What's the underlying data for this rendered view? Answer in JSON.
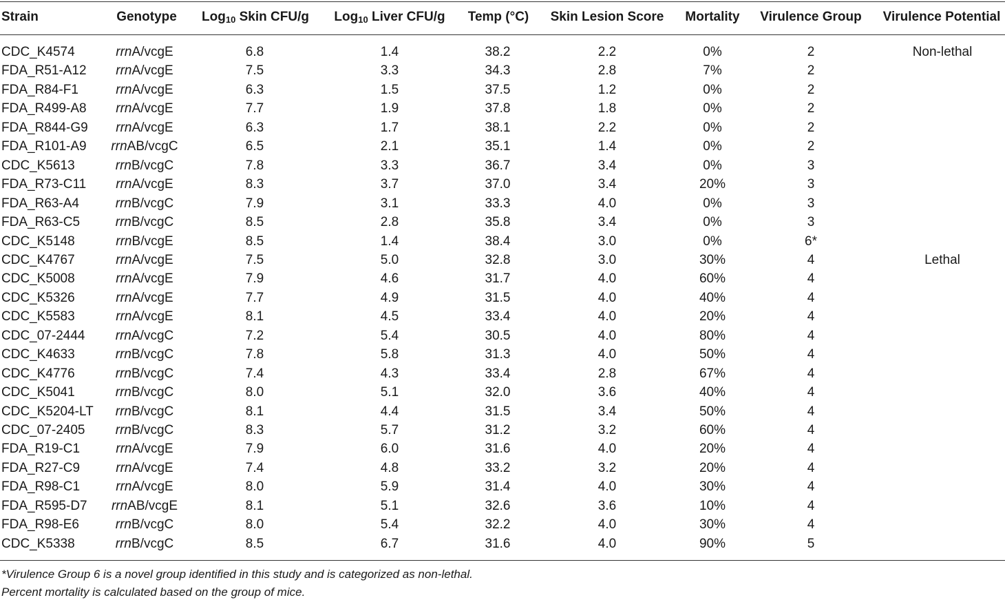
{
  "headers": {
    "strain": "Strain",
    "genotype": "Genotype",
    "skin_prefix": "Log",
    "skin_sub": "10",
    "skin_suffix": " Skin CFU/g",
    "liver_prefix": "Log",
    "liver_sub": "10",
    "liver_suffix": " Liver CFU/g",
    "temp": "Temp (°C)",
    "lesion": "Skin Lesion Score",
    "mortality": "Mortality",
    "vgroup": "Virulence Group",
    "vpotential": "Virulence Potential"
  },
  "rows": [
    {
      "strain": "CDC_K4574",
      "geno_italic": "rrn",
      "geno_rest": "A/vcgE",
      "skin": "6.8",
      "liver": "1.4",
      "temp": "38.2",
      "lesion": "2.2",
      "mortality": "0%",
      "group": "2",
      "potential": "Non-lethal"
    },
    {
      "strain": "FDA_R51-A12",
      "geno_italic": "rrn",
      "geno_rest": "A/vcgE",
      "skin": "7.5",
      "liver": "3.3",
      "temp": "34.3",
      "lesion": "2.8",
      "mortality": "7%",
      "group": "2",
      "potential": ""
    },
    {
      "strain": "FDA_R84-F1",
      "geno_italic": "rrn",
      "geno_rest": "A/vcgE",
      "skin": "6.3",
      "liver": "1.5",
      "temp": "37.5",
      "lesion": "1.2",
      "mortality": "0%",
      "group": "2",
      "potential": ""
    },
    {
      "strain": "FDA_R499-A8",
      "geno_italic": "rrn",
      "geno_rest": "A/vcgE",
      "skin": "7.7",
      "liver": "1.9",
      "temp": "37.8",
      "lesion": "1.8",
      "mortality": "0%",
      "group": "2",
      "potential": ""
    },
    {
      "strain": "FDA_R844-G9",
      "geno_italic": "rrn",
      "geno_rest": "A/vcgE",
      "skin": "6.3",
      "liver": "1.7",
      "temp": "38.1",
      "lesion": "2.2",
      "mortality": "0%",
      "group": "2",
      "potential": ""
    },
    {
      "strain": "FDA_R101-A9",
      "geno_italic": "rrn",
      "geno_rest": "AB/vcgC",
      "skin": "6.5",
      "liver": "2.1",
      "temp": "35.1",
      "lesion": "1.4",
      "mortality": "0%",
      "group": "2",
      "potential": ""
    },
    {
      "strain": "CDC_K5613",
      "geno_italic": "rrn",
      "geno_rest": "B/vcgC",
      "skin": "7.8",
      "liver": "3.3",
      "temp": "36.7",
      "lesion": "3.4",
      "mortality": "0%",
      "group": "3",
      "potential": ""
    },
    {
      "strain": "FDA_R73-C11",
      "geno_italic": "rrn",
      "geno_rest": "A/vcgE",
      "skin": "8.3",
      "liver": "3.7",
      "temp": "37.0",
      "lesion": "3.4",
      "mortality": "20%",
      "group": "3",
      "potential": ""
    },
    {
      "strain": "FDA_R63-A4",
      "geno_italic": "rrn",
      "geno_rest": "B/vcgC",
      "skin": "7.9",
      "liver": "3.1",
      "temp": "33.3",
      "lesion": "4.0",
      "mortality": "0%",
      "group": "3",
      "potential": ""
    },
    {
      "strain": "FDA_R63-C5",
      "geno_italic": "rrn",
      "geno_rest": "B/vcgC",
      "skin": "8.5",
      "liver": "2.8",
      "temp": "35.8",
      "lesion": "3.4",
      "mortality": "0%",
      "group": "3",
      "potential": ""
    },
    {
      "strain": "CDC_K5148",
      "geno_italic": "rrn",
      "geno_rest": "B/vcgE",
      "skin": "8.5",
      "liver": "1.4",
      "temp": "38.4",
      "lesion": "3.0",
      "mortality": "0%",
      "group": "6*",
      "potential": ""
    },
    {
      "strain": "CDC_K4767",
      "geno_italic": "rrn",
      "geno_rest": "A/vcgE",
      "skin": "7.5",
      "liver": "5.0",
      "temp": "32.8",
      "lesion": "3.0",
      "mortality": "30%",
      "group": "4",
      "potential": "Lethal"
    },
    {
      "strain": "CDC_K5008",
      "geno_italic": "rrn",
      "geno_rest": "A/vcgE",
      "skin": "7.9",
      "liver": "4.6",
      "temp": "31.7",
      "lesion": "4.0",
      "mortality": "60%",
      "group": "4",
      "potential": ""
    },
    {
      "strain": "CDC_K5326",
      "geno_italic": "rrn",
      "geno_rest": "A/vcgE",
      "skin": "7.7",
      "liver": "4.9",
      "temp": "31.5",
      "lesion": "4.0",
      "mortality": "40%",
      "group": "4",
      "potential": ""
    },
    {
      "strain": "CDC_K5583",
      "geno_italic": "rrn",
      "geno_rest": "A/vcgE",
      "skin": "8.1",
      "liver": "4.5",
      "temp": "33.4",
      "lesion": "4.0",
      "mortality": "20%",
      "group": "4",
      "potential": ""
    },
    {
      "strain": "CDC_07-2444",
      "geno_italic": "rrn",
      "geno_rest": "A/vcgC",
      "skin": "7.2",
      "liver": "5.4",
      "temp": "30.5",
      "lesion": "4.0",
      "mortality": "80%",
      "group": "4",
      "potential": ""
    },
    {
      "strain": "CDC_K4633",
      "geno_italic": "rrn",
      "geno_rest": "B/vcgC",
      "skin": "7.8",
      "liver": "5.8",
      "temp": "31.3",
      "lesion": "4.0",
      "mortality": "50%",
      "group": "4",
      "potential": ""
    },
    {
      "strain": "CDC_K4776",
      "geno_italic": "rrn",
      "geno_rest": "B/vcgC",
      "skin": "7.4",
      "liver": "4.3",
      "temp": "33.4",
      "lesion": "2.8",
      "mortality": "67%",
      "group": "4",
      "potential": ""
    },
    {
      "strain": "CDC_K5041",
      "geno_italic": "rrn",
      "geno_rest": "B/vcgC",
      "skin": "8.0",
      "liver": "5.1",
      "temp": "32.0",
      "lesion": "3.6",
      "mortality": "40%",
      "group": "4",
      "potential": ""
    },
    {
      "strain": "CDC_K5204-LT",
      "geno_italic": "rrn",
      "geno_rest": "B/vcgC",
      "skin": "8.1",
      "liver": "4.4",
      "temp": "31.5",
      "lesion": "3.4",
      "mortality": "50%",
      "group": "4",
      "potential": ""
    },
    {
      "strain": "CDC_07-2405",
      "geno_italic": "rrn",
      "geno_rest": "B/vcgC",
      "skin": "8.3",
      "liver": "5.7",
      "temp": "31.2",
      "lesion": "3.2",
      "mortality": "60%",
      "group": "4",
      "potential": ""
    },
    {
      "strain": "FDA_R19-C1",
      "geno_italic": "rrn",
      "geno_rest": "A/vcgE",
      "skin": "7.9",
      "liver": "6.0",
      "temp": "31.6",
      "lesion": "4.0",
      "mortality": "20%",
      "group": "4",
      "potential": ""
    },
    {
      "strain": "FDA_R27-C9",
      "geno_italic": "rrn",
      "geno_rest": "A/vcgE",
      "skin": "7.4",
      "liver": "4.8",
      "temp": "33.2",
      "lesion": "3.2",
      "mortality": "20%",
      "group": "4",
      "potential": ""
    },
    {
      "strain": "FDA_R98-C1",
      "geno_italic": "rrn",
      "geno_rest": "A/vcgE",
      "skin": "8.0",
      "liver": "5.9",
      "temp": "31.4",
      "lesion": "4.0",
      "mortality": "30%",
      "group": "4",
      "potential": ""
    },
    {
      "strain": "FDA_R595-D7",
      "geno_italic": "rrn",
      "geno_rest": "AB/vcgE",
      "skin": "8.1",
      "liver": "5.1",
      "temp": "32.6",
      "lesion": "3.6",
      "mortality": "10%",
      "group": "4",
      "potential": ""
    },
    {
      "strain": "FDA_R98-E6",
      "geno_italic": "rrn",
      "geno_rest": "B/vcgC",
      "skin": "8.0",
      "liver": "5.4",
      "temp": "32.2",
      "lesion": "4.0",
      "mortality": "30%",
      "group": "4",
      "potential": ""
    },
    {
      "strain": "CDC_K5338",
      "geno_italic": "rrn",
      "geno_rest": "B/vcgC",
      "skin": "8.5",
      "liver": "6.7",
      "temp": "31.6",
      "lesion": "4.0",
      "mortality": "90%",
      "group": "5",
      "potential": ""
    }
  ],
  "footnotes": [
    "*Virulence Group 6 is a novel group identified in this study and is categorized as non-lethal.",
    "Percent mortality is calculated based on the group of mice."
  ]
}
